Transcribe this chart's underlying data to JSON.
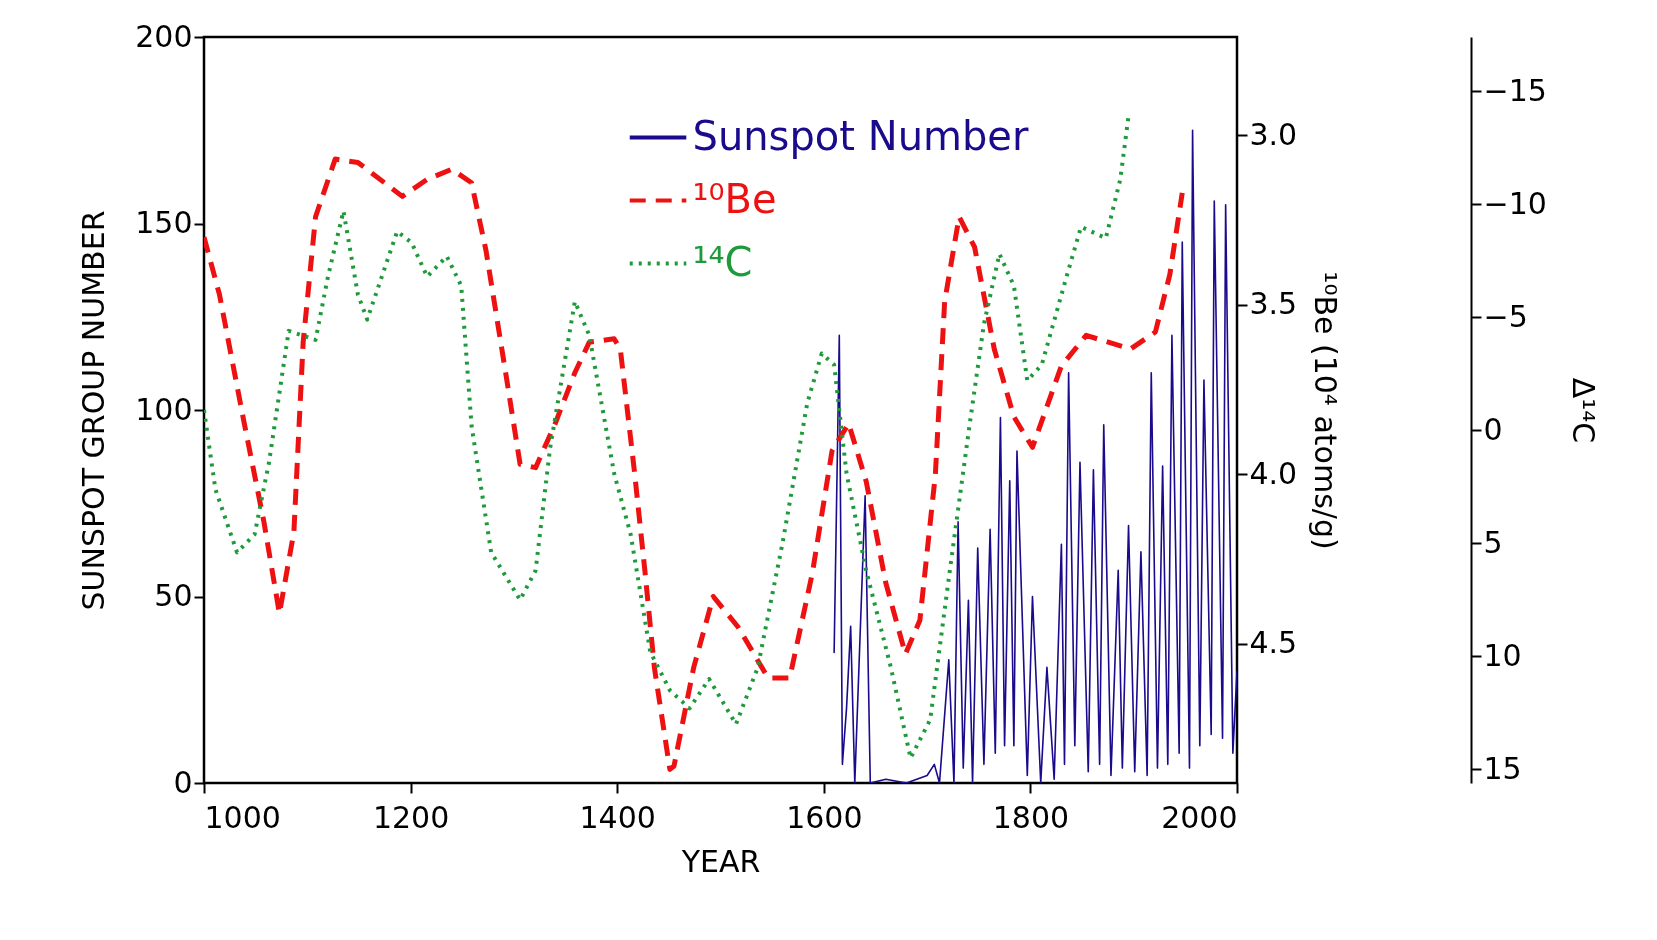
{
  "chart_data": {
    "type": "line",
    "xlabel": "YEAR",
    "ylabel": "SUNSPOT GROUP NUMBER",
    "y2label": "¹⁰Be (10⁴ atoms/g)",
    "y3label": "Δ¹⁴C",
    "xlim": [
      1000,
      2000
    ],
    "xticks": [
      1000,
      1200,
      1400,
      1600,
      1800,
      2000
    ],
    "ylim": [
      0,
      200
    ],
    "yticks": [
      0,
      50,
      100,
      150,
      200
    ],
    "y2lim": [
      4.91,
      2.71
    ],
    "y2ticks": [
      {
        "value": 3,
        "label": "3.0"
      },
      3.5,
      {
        "value": 4,
        "label": "4.0"
      },
      4.5
    ],
    "y3lim": [
      15.6,
      -17.4
    ],
    "y3ticks": [
      -15,
      -10,
      -5,
      0,
      5,
      10,
      15
    ],
    "legend": "top",
    "series": [
      {
        "name": "Sunspot Number",
        "color": "#1a0a8c",
        "line_style": "solid",
        "x": [
          1610,
          1615,
          1618,
          1622,
          1626,
          1630,
          1640,
          1645,
          1660,
          1680,
          1700,
          1707,
          1712,
          1721,
          1726,
          1730,
          1735,
          1740,
          1744,
          1749,
          1755,
          1761,
          1766,
          1771,
          1775,
          1780,
          1784,
          1787,
          1797,
          1802,
          1810,
          1816,
          1823,
          1830,
          1833,
          1837,
          1843,
          1848,
          1856,
          1861,
          1867,
          1871,
          1878,
          1885,
          1889,
          1895,
          1901,
          1907,
          1913,
          1917,
          1923,
          1928,
          1933,
          1937,
          1944,
          1947,
          1954,
          1957,
          1964,
          1968,
          1975,
          1978,
          1986,
          1989,
          1996,
          2000
        ],
        "values": [
          35,
          120,
          5,
          20,
          42,
          0,
          77,
          0,
          1,
          0,
          2,
          5,
          0,
          33,
          0,
          70,
          4,
          49,
          0,
          63,
          5,
          68,
          8,
          98,
          10,
          81,
          10,
          89,
          2,
          50,
          0,
          31,
          1,
          64,
          5,
          110,
          10,
          86,
          3,
          84,
          5,
          96,
          2,
          57,
          4,
          69,
          3,
          62,
          2,
          110,
          4,
          85,
          5,
          120,
          8,
          145,
          4,
          175,
          10,
          108,
          13,
          156,
          12,
          155,
          8,
          30
        ]
      },
      {
        "name": "¹⁰Be",
        "color": "#ee1111",
        "line_style": "dashed",
        "axis": "y2",
        "x": [
          1000,
          1015,
          1039,
          1058,
          1073,
          1087,
          1096,
          1108,
          1127,
          1149,
          1192,
          1216,
          1240,
          1259,
          1273,
          1292,
          1306,
          1321,
          1340,
          1359,
          1373,
          1397,
          1403,
          1417,
          1427,
          1436,
          1451,
          1455,
          1474,
          1493,
          1517,
          1546,
          1567,
          1589,
          1608,
          1624,
          1641,
          1660,
          1679,
          1693,
          1708,
          1717,
          1731,
          1746,
          1765,
          1784,
          1802,
          1830,
          1854,
          1897,
          1921,
          1935,
          1947
        ],
        "values": [
          3.3,
          3.47,
          3.85,
          4.14,
          4.41,
          4.17,
          3.61,
          3.24,
          3.07,
          3.08,
          3.18,
          3.13,
          3.1,
          3.14,
          3.34,
          3.7,
          3.97,
          3.98,
          3.85,
          3.7,
          3.61,
          3.6,
          3.63,
          4.0,
          4.29,
          4.57,
          4.87,
          4.86,
          4.57,
          4.36,
          4.45,
          4.6,
          4.6,
          4.29,
          3.93,
          3.85,
          4.02,
          4.32,
          4.53,
          4.43,
          4.0,
          3.49,
          3.24,
          3.33,
          3.63,
          3.83,
          3.92,
          3.68,
          3.59,
          3.63,
          3.58,
          3.41,
          3.17
        ]
      },
      {
        "name": "¹⁴C",
        "color": "#1e9a3a",
        "line_style": "dotted",
        "axis": "y3",
        "x": [
          1000,
          1011,
          1032,
          1049,
          1063,
          1082,
          1108,
          1120,
          1135,
          1149,
          1158,
          1187,
          1201,
          1216,
          1235,
          1249,
          1259,
          1278,
          1306,
          1321,
          1335,
          1359,
          1373,
          1397,
          1413,
          1432,
          1451,
          1470,
          1489,
          1515,
          1536,
          1560,
          1584,
          1598,
          1610,
          1622,
          1641,
          1665,
          1684,
          1703,
          1722,
          1741,
          1755,
          1770,
          1784,
          1797,
          1811,
          1835,
          1849,
          1873,
          1887,
          1895
        ],
        "values": [
          -0.9,
          2.6,
          5.4,
          4.6,
          1.4,
          -4.4,
          -4.0,
          -6.8,
          -9.7,
          -6.0,
          -4.9,
          -8.8,
          -8.3,
          -6.8,
          -7.7,
          -6.4,
          -0.2,
          5.4,
          7.5,
          6.2,
          0.8,
          -5.7,
          -4.2,
          1.9,
          4.6,
          9.8,
          11.5,
          12.3,
          11.0,
          13.0,
          10.5,
          5.0,
          -1.2,
          -3.4,
          -2.9,
          1.9,
          6.2,
          10.5,
          14.5,
          12.8,
          6.2,
          -0.2,
          -4.7,
          -7.8,
          -6.4,
          -2.2,
          -2.9,
          -6.8,
          -9.0,
          -8.5,
          -11.1,
          -13.9
        ]
      }
    ]
  }
}
